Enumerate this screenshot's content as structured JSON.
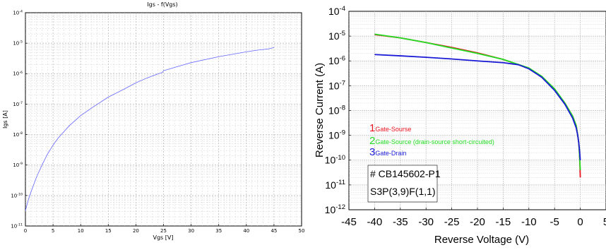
{
  "chart_data": [
    {
      "type": "line",
      "title": "Igs - f(Vgs)",
      "xlabel": "Vgs [V]",
      "ylabel": "Igs [A]",
      "xlim": [
        0,
        50
      ],
      "ylim": [
        1e-11,
        0.0001
      ],
      "yscale": "log",
      "grid": true,
      "x_ticks": [
        "0",
        "5",
        "10",
        "15",
        "20",
        "25",
        "30",
        "35",
        "40",
        "45",
        "50"
      ],
      "y_ticks": [
        {
          "base": "10",
          "exp": "-11"
        },
        {
          "base": "10",
          "exp": "-10"
        },
        {
          "base": "10",
          "exp": "-9"
        },
        {
          "base": "10",
          "exp": "-8"
        },
        {
          "base": "10",
          "exp": "-7"
        },
        {
          "base": "10",
          "exp": "-6"
        },
        {
          "base": "10",
          "exp": "-5"
        },
        {
          "base": "10",
          "exp": "-4"
        }
      ],
      "series": [
        {
          "color": "#6666ff",
          "x": [
            0,
            0.5,
            1,
            2,
            3,
            4,
            5,
            6,
            8,
            10,
            12,
            15,
            18,
            20,
            22,
            24,
            24.8,
            25,
            27,
            30,
            35,
            40,
            42,
            44,
            45
          ],
          "y": [
            3.2e-11,
            7e-11,
            1.3e-10,
            4e-10,
            1e-09,
            2.3e-09,
            4.5e-09,
            8e-09,
            2e-08,
            4.2e-08,
            7.5e-08,
            1.7e-07,
            3.2e-07,
            5e-07,
            7.2e-07,
            9.8e-07,
            1.1e-06,
            1.25e-06,
            1.6e-06,
            2.3e-06,
            3.6e-06,
            5.2e-06,
            5.9e-06,
            6.5e-06,
            7.2e-06
          ]
        }
      ]
    },
    {
      "type": "line",
      "xlabel": "Reverse Voltage (V)",
      "ylabel": "Reverse Current (A)",
      "xlim": [
        -45,
        5
      ],
      "ylim": [
        1e-12,
        0.0001
      ],
      "yscale": "log",
      "grid": true,
      "x_ticks": [
        "-45",
        "-40",
        "-35",
        "-30",
        "-25",
        "-20",
        "-15",
        "-10",
        "-5",
        "0",
        "5"
      ],
      "y_ticks": [
        {
          "base": "10",
          "exp": "-12"
        },
        {
          "base": "10",
          "exp": "-11"
        },
        {
          "base": "10",
          "exp": "-10"
        },
        {
          "base": "10",
          "exp": "-9"
        },
        {
          "base": "10",
          "exp": "-8"
        },
        {
          "base": "10",
          "exp": "-7"
        },
        {
          "base": "10",
          "exp": "-6"
        },
        {
          "base": "10",
          "exp": "-5"
        },
        {
          "base": "10",
          "exp": "-4"
        }
      ],
      "legend": [
        {
          "number": "1",
          "label": "Gate-Sourse",
          "color": "#e8141e"
        },
        {
          "number": "2",
          "label": "Gate-Source (drain-source short-circuited)",
          "color": "#22dd22"
        },
        {
          "number": "3",
          "label": "Gate-Drain",
          "color": "#1a1ad6"
        }
      ],
      "annotations": [
        "# CB145602-P1",
        "S3P(3,9)F(1,1)"
      ],
      "series": [
        {
          "color": "#e8141e",
          "x": [
            -40,
            -35,
            -30,
            -25,
            -20,
            -15,
            -10,
            -7.5,
            -5,
            -3,
            -1.5,
            -0.8,
            -0.5,
            -0.3,
            -0.2,
            -0.1,
            0
          ],
          "y": [
            1.15e-05,
            8.5e-06,
            5.5e-06,
            3.5e-06,
            2.1e-06,
            1.15e-06,
            5e-07,
            2.2e-07,
            7e-08,
            2e-08,
            6e-09,
            2.5e-09,
            1e-09,
            5e-10,
            2.5e-10,
            1e-10,
            2e-11
          ]
        },
        {
          "color": "#22dd22",
          "x": [
            -40,
            -35,
            -30,
            -25,
            -20,
            -15,
            -10,
            -7.5,
            -5,
            -3,
            -1.5,
            -0.8,
            -0.5,
            -0.3,
            -0.2,
            -0.1,
            0
          ],
          "y": [
            1.2e-05,
            8.5e-06,
            5.5e-06,
            3.3e-06,
            2e-06,
            1.15e-06,
            5.2e-07,
            2.4e-07,
            7.5e-08,
            2e-08,
            6e-09,
            2.5e-09,
            1e-09,
            5e-10,
            2.5e-10,
            1e-10,
            4e-11
          ]
        },
        {
          "color": "#1a1ad6",
          "x": [
            -40,
            -35,
            -30,
            -25,
            -20,
            -15,
            -12,
            -10,
            -7.5,
            -5,
            -3,
            -1.5,
            -0.8,
            -0.5,
            -0.3,
            -0.15,
            0
          ],
          "y": [
            1.8e-06,
            1.6e-06,
            1.4e-06,
            1.2e-06,
            1e-06,
            8.5e-07,
            7e-07,
            4.8e-07,
            2.2e-07,
            6.5e-08,
            1.8e-08,
            5e-09,
            2e-09,
            1e-09,
            5e-10,
            2.5e-10,
            1e-10
          ]
        }
      ]
    }
  ]
}
